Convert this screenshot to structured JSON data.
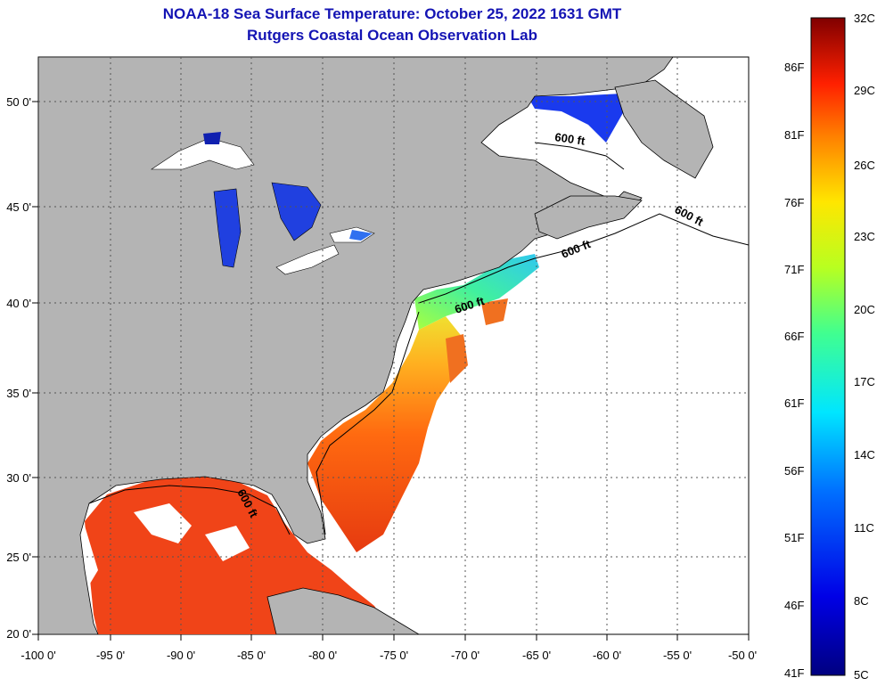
{
  "title_line1": "NOAA-18 Sea Surface Temperature:  October 25, 2022 1631 GMT",
  "title_line2": "Rutgers Coastal Ocean Observation Lab",
  "lat_labels": [
    "50 0'",
    "45 0'",
    "40 0'",
    "35 0'",
    "30 0'",
    "25 0'",
    "20 0'"
  ],
  "lon_labels": [
    "-100 0'",
    "-95 0'",
    "-90 0'",
    "-85 0'",
    "-80 0'",
    "-75 0'",
    "-70 0'",
    "-65 0'",
    "-60 0'",
    "-55 0'",
    "-50 0'"
  ],
  "contour_label": "600 ft",
  "colorbar_fahrenheit": [
    "86F",
    "81F",
    "76F",
    "71F",
    "66F",
    "61F",
    "56F",
    "51F",
    "46F",
    "41F"
  ],
  "colorbar_celsius": [
    "32C",
    "29C",
    "26C",
    "23C",
    "20C",
    "17C",
    "14C",
    "11C",
    "8C",
    "5C"
  ],
  "colors": {
    "title": "#1414b4",
    "land": "#b4b4b4",
    "ocean_nodata": "#ffffff",
    "gridline": "#555555"
  }
}
